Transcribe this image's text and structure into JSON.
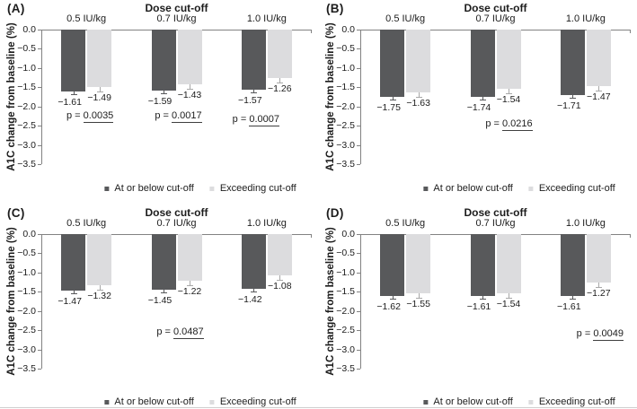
{
  "style": {
    "bar_colors": [
      "#58595b",
      "#dcdcde"
    ],
    "whisker_colors": [
      "#58595b",
      "#a8a8a8"
    ],
    "axis_color": "#828282",
    "text_color": "#1c1c1c",
    "p_underline_color": "#3f3f3f",
    "bottom_rule_color": "#cfcfcf"
  },
  "legend": {
    "position": "bottom",
    "items": [
      {
        "label": "At or below cut-off",
        "color": "#58595b"
      },
      {
        "label": "Exceeding cut-off",
        "color": "#dcdcde"
      }
    ]
  },
  "y_axis": {
    "ticks": [
      "0.0",
      "−0.5",
      "−1.0",
      "−1.5",
      "−2.0",
      "−2.5",
      "−3.0",
      "−3.5"
    ],
    "range": [
      0,
      -3.5
    ],
    "step": 0.5
  },
  "chart_data": [
    {
      "type": "bar",
      "panel_label": "(A)",
      "title": "Dose cut-off",
      "ylabel": "A1C change from baseline (%)",
      "ylim": [
        0,
        -3.5
      ],
      "grid": false,
      "categories": [
        "0.5 IU/kg",
        "0.7 IU/kg",
        "1.0 IU/kg"
      ],
      "series": [
        {
          "name": "At or below cut-off",
          "values": [
            -1.61,
            -1.59,
            -1.57
          ]
        },
        {
          "name": "Exceeding cut-off",
          "values": [
            -1.49,
            -1.43,
            -1.26
          ]
        }
      ],
      "error_whiskers": true,
      "p_values": [
        {
          "category": "0.5 IU/kg",
          "prefix": "p = ",
          "number": "0.0035",
          "level": -2.24,
          "dx": 4
        },
        {
          "category": "0.7 IU/kg",
          "prefix": "p = ",
          "number": "0.0017",
          "level": -2.25,
          "dx": 2
        },
        {
          "category": "1.0 IU/kg",
          "prefix": "p = ",
          "number": "0.0007",
          "level": -2.33,
          "dx": -12
        }
      ]
    },
    {
      "type": "bar",
      "panel_label": "(B)",
      "title": "Dose cut-off",
      "ylabel": "A1C change from baseline (%)",
      "ylim": [
        0,
        -3.5
      ],
      "grid": false,
      "categories": [
        "0.5 IU/kg",
        "0.7 IU/kg",
        "1.0 IU/kg"
      ],
      "series": [
        {
          "name": "At or below cut-off",
          "values": [
            -1.75,
            -1.74,
            -1.71
          ]
        },
        {
          "name": "Exceeding cut-off",
          "values": [
            -1.63,
            -1.54,
            -1.47
          ]
        }
      ],
      "error_whiskers": true,
      "p_values": [
        {
          "category": "0.7 IU/kg",
          "prefix": "p = ",
          "number": "0.0216",
          "level": -2.44,
          "dx": 15
        }
      ]
    },
    {
      "type": "bar",
      "panel_label": "(C)",
      "title": "Dose cut-off",
      "ylabel": "A1C change from baseline (%)",
      "ylim": [
        0,
        -3.5
      ],
      "grid": false,
      "categories": [
        "0.5 IU/kg",
        "0.7 IU/kg",
        "1.0 IU/kg"
      ],
      "series": [
        {
          "name": "At or below cut-off",
          "values": [
            -1.47,
            -1.45,
            -1.42
          ]
        },
        {
          "name": "Exceeding cut-off",
          "values": [
            -1.32,
            -1.22,
            -1.08
          ]
        }
      ],
      "error_whiskers": true,
      "p_values": [
        {
          "category": "0.7 IU/kg",
          "prefix": "p = ",
          "number": "0.0487",
          "level": -2.55,
          "dx": 4
        }
      ]
    },
    {
      "type": "bar",
      "panel_label": "(D)",
      "title": "Dose cut-off",
      "ylabel": "A1C change from baseline (%)",
      "ylim": [
        0,
        -3.5
      ],
      "grid": false,
      "categories": [
        "0.5 IU/kg",
        "0.7 IU/kg",
        "1.0 IU/kg"
      ],
      "series": [
        {
          "name": "At or below cut-off",
          "values": [
            -1.62,
            -1.61,
            -1.61
          ]
        },
        {
          "name": "Exceeding cut-off",
          "values": [
            -1.55,
            -1.54,
            -1.27
          ]
        }
      ],
      "error_whiskers": true,
      "p_values": [
        {
          "category": "1.0 IU/kg",
          "prefix": "p = ",
          "number": "0.0049",
          "level": -2.59,
          "dx": 16
        }
      ]
    }
  ]
}
